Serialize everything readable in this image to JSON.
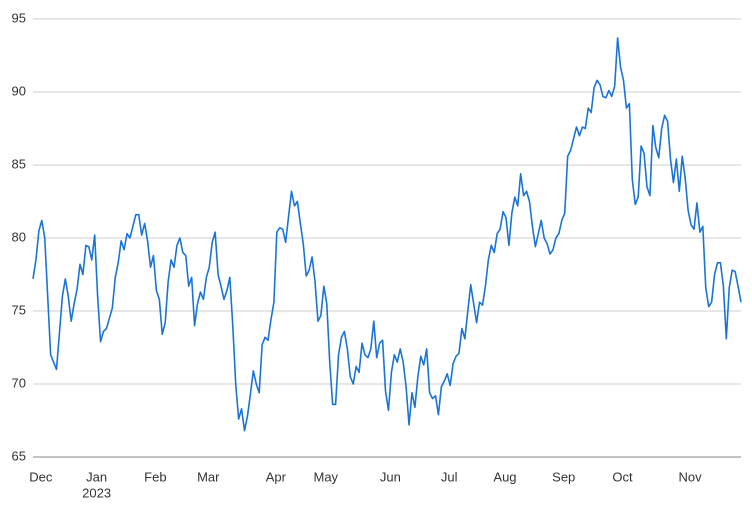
{
  "chart_data": {
    "type": "line",
    "categories": [
      null,
      null,
      null,
      "Dec",
      null,
      null,
      null,
      null,
      null,
      null,
      null,
      null,
      null,
      null,
      null,
      null,
      null,
      null,
      null,
      null,
      null,
      null,
      "Jan",
      null,
      null,
      null,
      null,
      null,
      null,
      null,
      null,
      null,
      null,
      null,
      null,
      null,
      null,
      null,
      null,
      null,
      null,
      null,
      "Feb",
      null,
      null,
      null,
      null,
      null,
      null,
      null,
      null,
      null,
      null,
      null,
      null,
      null,
      null,
      null,
      null,
      null,
      "Mar",
      null,
      null,
      null,
      null,
      null,
      null,
      null,
      null,
      null,
      null,
      null,
      null,
      null,
      null,
      null,
      null,
      null,
      null,
      null,
      null,
      null,
      null,
      "Apr",
      null,
      null,
      null,
      null,
      null,
      null,
      null,
      null,
      null,
      null,
      null,
      null,
      null,
      null,
      null,
      null,
      "May",
      null,
      null,
      null,
      null,
      null,
      null,
      null,
      null,
      null,
      null,
      null,
      null,
      null,
      null,
      null,
      null,
      null,
      null,
      null,
      null,
      null,
      "Jun",
      null,
      null,
      null,
      null,
      null,
      null,
      null,
      null,
      null,
      null,
      null,
      null,
      null,
      null,
      null,
      null,
      null,
      null,
      null,
      "Jul",
      null,
      null,
      null,
      null,
      null,
      null,
      null,
      null,
      null,
      null,
      null,
      null,
      null,
      null,
      null,
      null,
      null,
      null,
      "Aug",
      null,
      null,
      null,
      null,
      null,
      null,
      null,
      null,
      null,
      null,
      null,
      null,
      null,
      null,
      null,
      null,
      null,
      null,
      null,
      "Sep",
      null,
      null,
      null,
      null,
      null,
      null,
      null,
      null,
      null,
      null,
      null,
      null,
      null,
      null,
      null,
      null,
      null,
      null,
      null,
      "Oct",
      null,
      null,
      null,
      null,
      null,
      null,
      null,
      null,
      null,
      null,
      null,
      null,
      null,
      null,
      null,
      null,
      null,
      null,
      null,
      null,
      null,
      null,
      "Nov",
      null,
      null,
      null,
      null,
      null,
      null,
      null,
      null,
      null,
      null,
      null,
      null,
      null,
      null,
      null,
      null,
      null
    ],
    "year_label": "2023",
    "color": "#1a74d6",
    "values": [
      77.2,
      78.5,
      80.5,
      81.2,
      80,
      76,
      72,
      71.5,
      71,
      73.5,
      76,
      77.2,
      76,
      74.3,
      75.5,
      76.5,
      78.2,
      77.5,
      79.5,
      79.4,
      78.5,
      80.2,
      76,
      72.9,
      73.6,
      73.8,
      74.5,
      75.2,
      77.3,
      78.3,
      79.8,
      79.2,
      80.3,
      80,
      80.8,
      81.6,
      81.6,
      80.2,
      81,
      79.8,
      78,
      78.8,
      76.4,
      75.8,
      73.4,
      74.2,
      77,
      78.5,
      78,
      79.5,
      80,
      79,
      78.8,
      76.7,
      77.3,
      74,
      75.5,
      76.3,
      75.8,
      77.3,
      78,
      79.7,
      80.4,
      77.5,
      76.7,
      75.8,
      76.4,
      77.3,
      74,
      70,
      67.6,
      68.3,
      66.8,
      67.8,
      69.3,
      70.9,
      70,
      69.4,
      72.7,
      73.2,
      73,
      74.4,
      75.6,
      80.4,
      80.7,
      80.6,
      79.7,
      81.5,
      83.2,
      82.2,
      82.5,
      81,
      79.6,
      77.4,
      77.8,
      78.7,
      77,
      74.3,
      74.7,
      76.7,
      75.5,
      71.5,
      68.6,
      68.6,
      72,
      73.2,
      73.6,
      72.4,
      70.5,
      70,
      71.2,
      70.8,
      72.8,
      72,
      71.8,
      72.4,
      74.3,
      71.8,
      72.8,
      73,
      69.5,
      68.2,
      70.8,
      72,
      71.5,
      72.4,
      71.5,
      69.8,
      67.2,
      69.4,
      68.4,
      70.5,
      71.9,
      71.3,
      72.4,
      69.4,
      69,
      69.2,
      67.9,
      69.8,
      70.2,
      70.7,
      69.9,
      71.4,
      71.9,
      72.1,
      73.8,
      73.1,
      75,
      76.8,
      75.5,
      74.2,
      75.6,
      75.4,
      76.7,
      78.5,
      79.5,
      79,
      80.3,
      80.6,
      81.8,
      81.4,
      79.5,
      81.7,
      82.8,
      82.2,
      84.4,
      82.9,
      83.2,
      82.5,
      80.8,
      79.4,
      80.3,
      81.2,
      80,
      79.6,
      78.9,
      79.2,
      80,
      80.3,
      81.2,
      81.7,
      85.6,
      86,
      86.8,
      87.6,
      87,
      87.6,
      87.5,
      88.9,
      88.6,
      90.3,
      90.8,
      90.5,
      89.7,
      89.6,
      90.1,
      89.7,
      90.4,
      93.7,
      91.7,
      90.8,
      88.9,
      89.2,
      84,
      82.3,
      82.8,
      86.3,
      85.8,
      83.5,
      82.9,
      87.7,
      86.2,
      85.5,
      87.5,
      88.4,
      88,
      85.4,
      83.8,
      85.4,
      83.2,
      85.6,
      84.1,
      81.9,
      80.9,
      80.6,
      82.4,
      80.4,
      80.8,
      76.6,
      75.3,
      75.6,
      77.5,
      78.3,
      78.3,
      76.7,
      73.1,
      76.6,
      77.8,
      77.7,
      76.7,
      75.6
    ],
    "ylim": [
      65,
      95
    ],
    "yticks": [
      65,
      70,
      75,
      80,
      85,
      90,
      95
    ],
    "grid": true
  }
}
